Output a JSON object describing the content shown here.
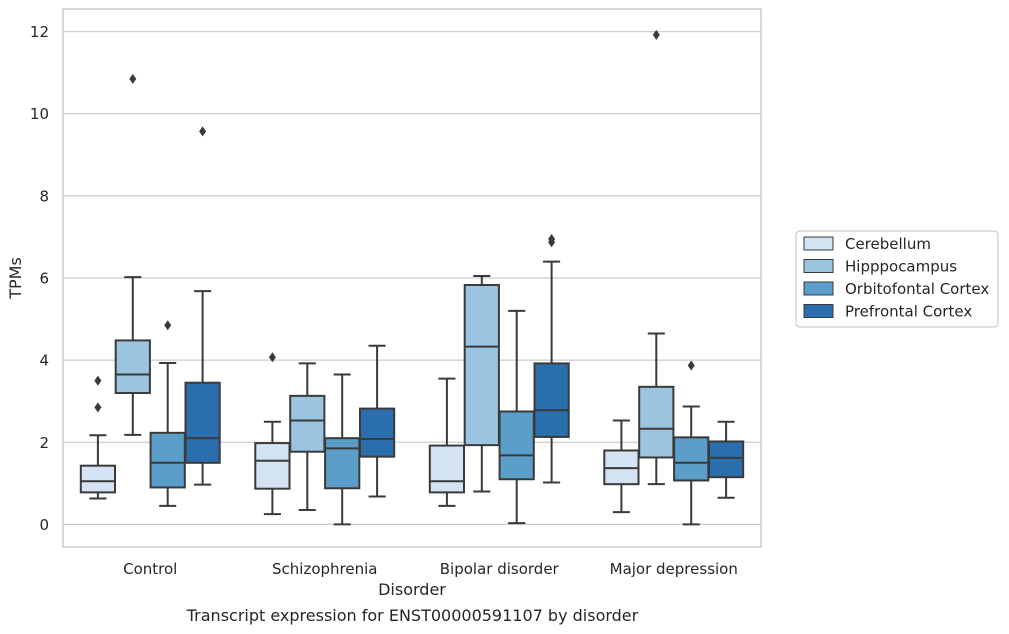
{
  "chart_data": {
    "type": "boxplot",
    "xlabel": "Disorder",
    "ylabel": "TPMs",
    "caption": "Transcript expression for ENST00000591107 by disorder",
    "ylim": [
      -0.55,
      12.55
    ],
    "yticks": [
      0,
      2,
      4,
      6,
      8,
      10,
      12
    ],
    "grid": "horizontal",
    "legend_position": "right",
    "categories": [
      "Control",
      "Schizophrenia",
      "Bipolar disorder",
      "Major depression"
    ],
    "series": [
      {
        "name": "Cerebellum",
        "color": "#d3e3f3",
        "boxes": [
          {
            "whislo": 0.63,
            "q1": 0.78,
            "med": 1.05,
            "q3": 1.43,
            "whishi": 2.17,
            "fliers": [
              2.85,
              3.5
            ]
          },
          {
            "whislo": 0.25,
            "q1": 0.87,
            "med": 1.55,
            "q3": 1.98,
            "whishi": 2.5,
            "fliers": [
              4.07
            ]
          },
          {
            "whislo": 0.45,
            "q1": 0.78,
            "med": 1.05,
            "q3": 1.92,
            "whishi": 3.55,
            "fliers": []
          },
          {
            "whislo": 0.3,
            "q1": 0.98,
            "med": 1.37,
            "q3": 1.8,
            "whishi": 2.53,
            "fliers": []
          }
        ]
      },
      {
        "name": "Hipppocampus",
        "color": "#9ac4e0",
        "boxes": [
          {
            "whislo": 2.18,
            "q1": 3.2,
            "med": 3.65,
            "q3": 4.48,
            "whishi": 6.02,
            "fliers": [
              10.85
            ]
          },
          {
            "whislo": 0.35,
            "q1": 1.77,
            "med": 2.53,
            "q3": 3.13,
            "whishi": 3.92,
            "fliers": []
          },
          {
            "whislo": 0.8,
            "q1": 1.93,
            "med": 4.33,
            "q3": 5.83,
            "whishi": 6.05,
            "fliers": []
          },
          {
            "whislo": 0.98,
            "q1": 1.63,
            "med": 2.33,
            "q3": 3.35,
            "whishi": 4.65,
            "fliers": [
              11.92
            ]
          }
        ]
      },
      {
        "name": "Orbitofontal Cortex",
        "color": "#5a9ec9",
        "boxes": [
          {
            "whislo": 0.45,
            "q1": 0.9,
            "med": 1.5,
            "q3": 2.23,
            "whishi": 3.93,
            "fliers": [
              4.85
            ]
          },
          {
            "whislo": 0.0,
            "q1": 0.88,
            "med": 1.85,
            "q3": 2.1,
            "whishi": 3.65,
            "fliers": []
          },
          {
            "whislo": 0.03,
            "q1": 1.1,
            "med": 1.68,
            "q3": 2.75,
            "whishi": 5.2,
            "fliers": []
          },
          {
            "whislo": 0.0,
            "q1": 1.07,
            "med": 1.5,
            "q3": 2.12,
            "whishi": 2.87,
            "fliers": [
              3.87
            ]
          }
        ]
      },
      {
        "name": "Prefrontal Cortex",
        "color": "#2b6ead",
        "boxes": [
          {
            "whislo": 0.97,
            "q1": 1.5,
            "med": 2.1,
            "q3": 3.45,
            "whishi": 5.68,
            "fliers": [
              9.57
            ]
          },
          {
            "whislo": 0.68,
            "q1": 1.65,
            "med": 2.08,
            "q3": 2.82,
            "whishi": 4.35,
            "fliers": []
          },
          {
            "whislo": 1.02,
            "q1": 2.13,
            "med": 2.78,
            "q3": 3.92,
            "whishi": 6.4,
            "fliers": [
              6.87,
              6.95
            ]
          },
          {
            "whislo": 0.65,
            "q1": 1.15,
            "med": 1.62,
            "q3": 2.02,
            "whishi": 2.5,
            "fliers": []
          }
        ]
      }
    ]
  }
}
